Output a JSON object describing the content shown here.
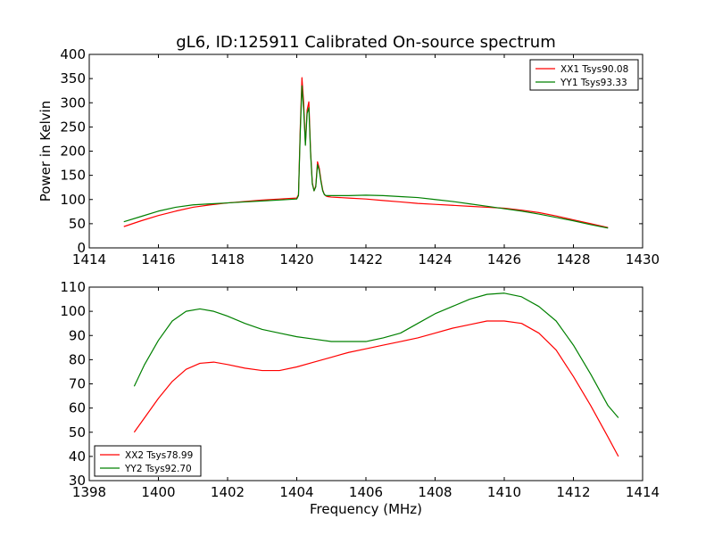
{
  "page_title": "gL6, ID:125911 Calibrated On-source spectrum",
  "chart_data": [
    {
      "type": "line",
      "title": "gL6, ID:125911 Calibrated On-source spectrum",
      "xlabel": "",
      "ylabel": "Power in Kelvin",
      "xlim": [
        1414,
        1430
      ],
      "ylim": [
        0,
        400
      ],
      "xticks": [
        "1414",
        "1416",
        "1418",
        "1420",
        "1422",
        "1424",
        "1426",
        "1428",
        "1430"
      ],
      "yticks": [
        "0",
        "50",
        "100",
        "150",
        "200",
        "250",
        "300",
        "350",
        "400"
      ],
      "legend": "top-right",
      "grid": false,
      "series": [
        {
          "name": "XX1 Tsys90.08",
          "color": "#ff0000",
          "x": [
            1415.0,
            1415.5,
            1416.0,
            1416.5,
            1417.0,
            1417.5,
            1418.0,
            1418.5,
            1419.0,
            1419.5,
            1420.0,
            1420.05,
            1420.1,
            1420.15,
            1420.2,
            1420.25,
            1420.3,
            1420.35,
            1420.4,
            1420.45,
            1420.5,
            1420.55,
            1420.6,
            1420.65,
            1420.7,
            1420.75,
            1420.8,
            1420.85,
            1420.9,
            1421.0,
            1421.5,
            1422.0,
            1422.5,
            1423.0,
            1423.5,
            1424.0,
            1424.5,
            1425.0,
            1425.5,
            1426.0,
            1426.5,
            1427.0,
            1427.5,
            1428.0,
            1428.5,
            1429.0
          ],
          "y": [
            44,
            56,
            67,
            76,
            84,
            89,
            93,
            96,
            99,
            101,
            103,
            110,
            245,
            352,
            300,
            215,
            285,
            302,
            200,
            135,
            118,
            128,
            178,
            165,
            140,
            120,
            110,
            107,
            106,
            105,
            103,
            101,
            98,
            95,
            92,
            90,
            88,
            86,
            84,
            82,
            78,
            73,
            66,
            58,
            50,
            42
          ]
        },
        {
          "name": "YY1 Tsys93.33",
          "color": "#008000",
          "x": [
            1415.0,
            1415.5,
            1416.0,
            1416.5,
            1417.0,
            1417.5,
            1418.0,
            1418.5,
            1419.0,
            1419.5,
            1420.0,
            1420.05,
            1420.1,
            1420.15,
            1420.2,
            1420.25,
            1420.3,
            1420.35,
            1420.4,
            1420.45,
            1420.5,
            1420.55,
            1420.6,
            1420.65,
            1420.7,
            1420.75,
            1420.8,
            1420.85,
            1420.9,
            1421.0,
            1421.5,
            1422.0,
            1422.5,
            1423.0,
            1423.5,
            1424.0,
            1424.5,
            1425.0,
            1425.5,
            1426.0,
            1426.5,
            1427.0,
            1427.5,
            1428.0,
            1428.5,
            1429.0
          ],
          "y": [
            54,
            65,
            76,
            84,
            89,
            91,
            93,
            95,
            97,
            99,
            101,
            108,
            235,
            335,
            285,
            212,
            278,
            290,
            195,
            132,
            118,
            126,
            172,
            160,
            137,
            118,
            110,
            108,
            108,
            108,
            108,
            109,
            108,
            106,
            104,
            100,
            96,
            91,
            86,
            81,
            76,
            70,
            63,
            56,
            48,
            41
          ]
        }
      ]
    },
    {
      "type": "line",
      "title": "",
      "xlabel": "Frequency (MHz)",
      "ylabel": "",
      "xlim": [
        1398,
        1414
      ],
      "ylim": [
        30,
        110
      ],
      "xticks": [
        "1398",
        "1400",
        "1402",
        "1404",
        "1406",
        "1408",
        "1410",
        "1412",
        "1414"
      ],
      "yticks": [
        "30",
        "40",
        "50",
        "60",
        "70",
        "80",
        "90",
        "100",
        "110"
      ],
      "legend": "bottom-left",
      "grid": false,
      "series": [
        {
          "name": "XX2 Tsys78.99",
          "color": "#ff0000",
          "x": [
            1399.3,
            1399.6,
            1400.0,
            1400.4,
            1400.8,
            1401.2,
            1401.6,
            1402.0,
            1402.5,
            1403.0,
            1403.5,
            1404.0,
            1404.5,
            1405.0,
            1405.5,
            1406.0,
            1406.5,
            1407.0,
            1407.5,
            1408.0,
            1408.5,
            1409.0,
            1409.5,
            1410.0,
            1410.5,
            1411.0,
            1411.5,
            1412.0,
            1412.5,
            1413.0,
            1413.3
          ],
          "y": [
            50,
            56,
            64,
            71,
            76,
            78.5,
            79,
            78,
            76.5,
            75.5,
            75.5,
            77,
            79,
            81,
            83,
            84.5,
            86,
            87.5,
            89,
            91,
            93,
            94.5,
            96,
            96,
            95,
            91,
            84,
            73,
            61,
            48,
            40
          ]
        },
        {
          "name": "YY2 Tsys92.70",
          "color": "#008000",
          "x": [
            1399.3,
            1399.6,
            1400.0,
            1400.4,
            1400.8,
            1401.2,
            1401.6,
            1402.0,
            1402.5,
            1403.0,
            1403.5,
            1404.0,
            1404.5,
            1405.0,
            1405.5,
            1406.0,
            1406.5,
            1407.0,
            1407.5,
            1408.0,
            1408.5,
            1409.0,
            1409.5,
            1410.0,
            1410.5,
            1411.0,
            1411.5,
            1412.0,
            1412.5,
            1413.0,
            1413.3
          ],
          "y": [
            69,
            78,
            88,
            96,
            100,
            101,
            100,
            98,
            95,
            92.5,
            91,
            89.5,
            88.5,
            87.5,
            87.5,
            87.5,
            89,
            91,
            95,
            99,
            102,
            105,
            107,
            107.5,
            106,
            102,
            96,
            86,
            74,
            61,
            56
          ]
        }
      ]
    }
  ],
  "colors": {
    "frame": "#000000",
    "xx": "#ff0000",
    "yy": "#008000"
  }
}
